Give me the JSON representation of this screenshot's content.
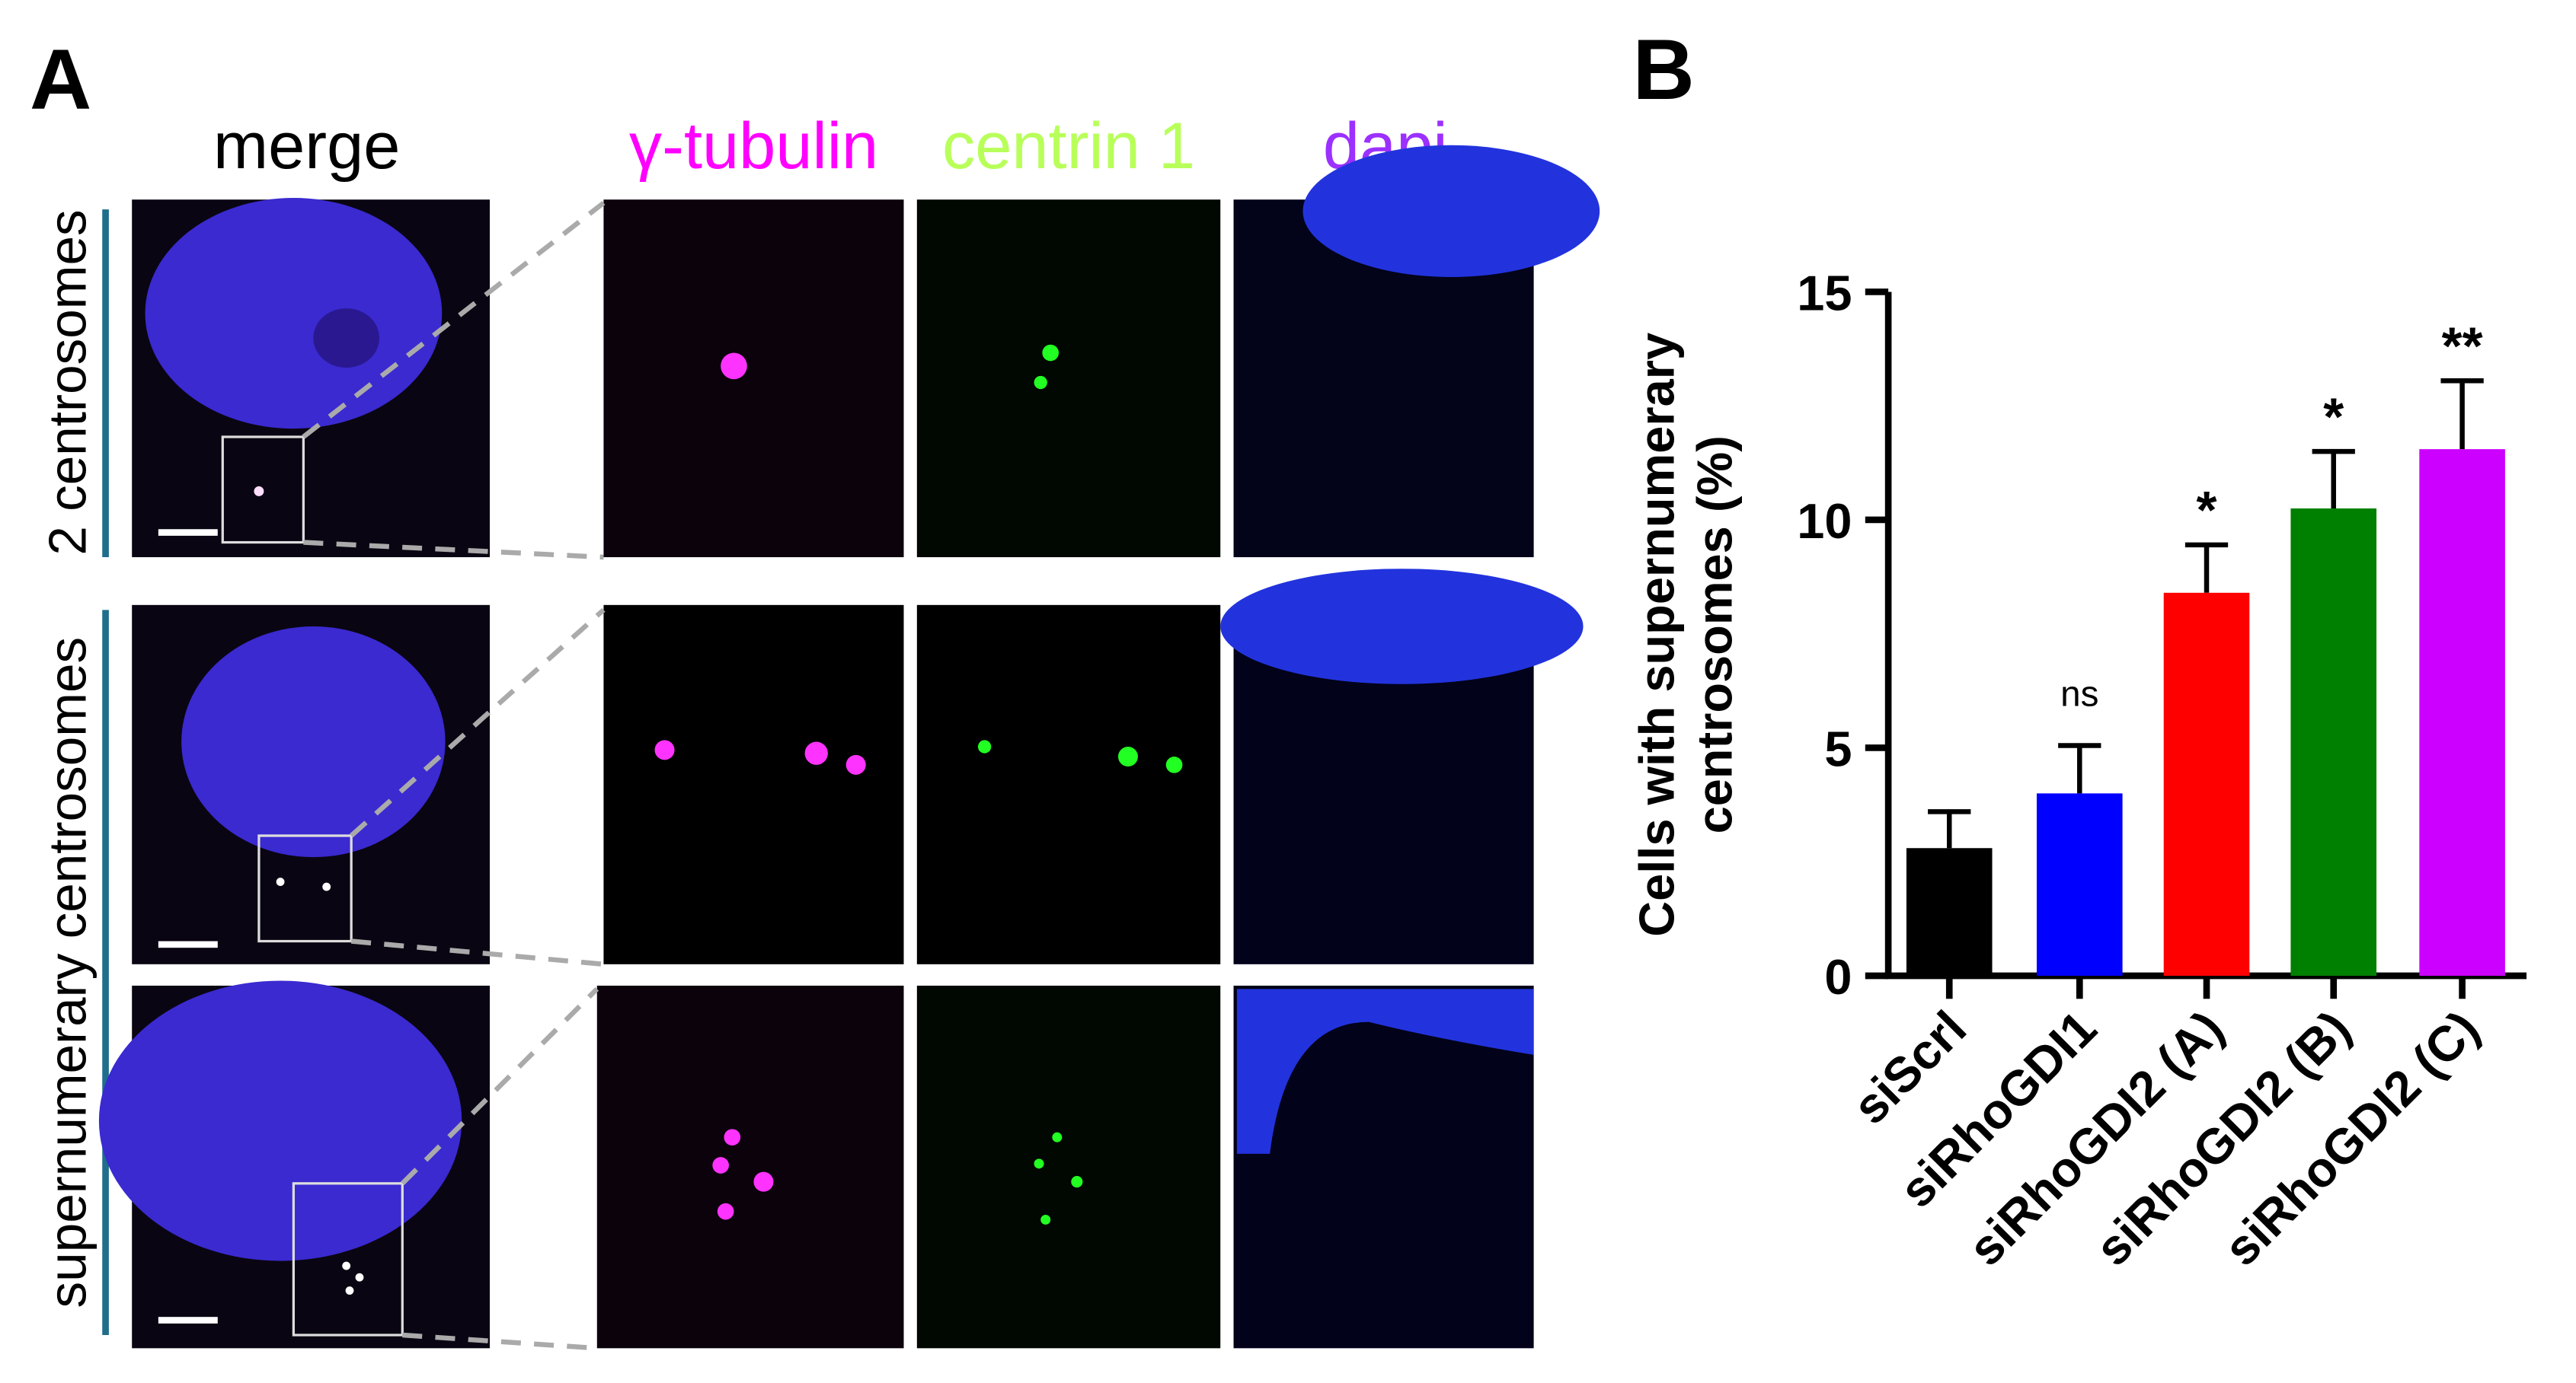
{
  "panel_a": {
    "label": "A",
    "columns": [
      "merge",
      "γ-tubulin",
      "centrin 1",
      "dapi"
    ],
    "rows": [
      "2 centrosomes",
      "supernumerary centrosomes"
    ]
  },
  "chart_data": {
    "type": "bar",
    "panel_label": "B",
    "ylabel": [
      "Cells with supernumerary",
      "centrosomes (%)"
    ],
    "categories": [
      "siScrl",
      "siRhoGDI1",
      "siRhoGDI2 (A)",
      "siRhoGDI2 (B)",
      "siRhoGDI2 (C)"
    ],
    "values": [
      2.8,
      4.0,
      8.4,
      10.25,
      11.55
    ],
    "errors": [
      0.8,
      1.05,
      1.05,
      1.25,
      1.5
    ],
    "colors": [
      "#000000",
      "#0000ff",
      "#ff0000",
      "#008000",
      "#cc00ff"
    ],
    "significance": [
      "",
      "ns",
      "*",
      "*",
      "**"
    ],
    "ylim": [
      0,
      15
    ],
    "yticks": [
      0,
      5,
      10,
      15
    ]
  }
}
